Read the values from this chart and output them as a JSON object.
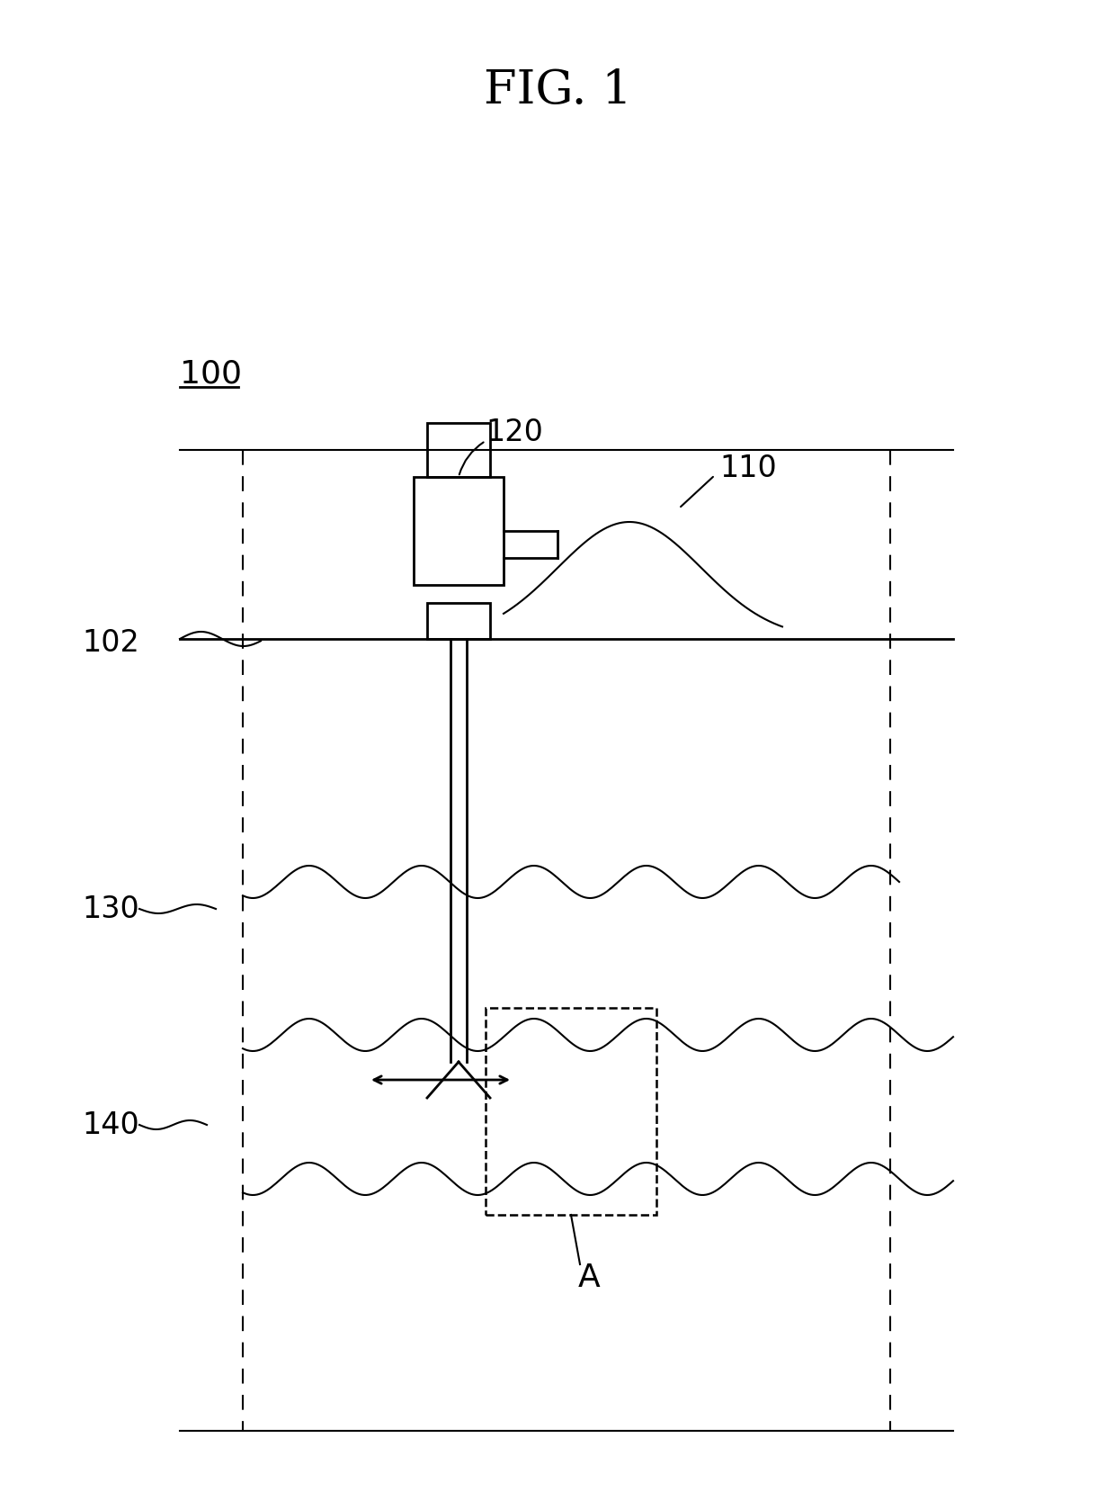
{
  "title": "FIG. 1",
  "bg_color": "#ffffff",
  "label_100": "100",
  "label_102": "102",
  "label_110": "110",
  "label_120": "120",
  "label_130": "130",
  "label_140": "140",
  "label_A": "A",
  "fig_width": 12.4,
  "fig_height": 16.78
}
